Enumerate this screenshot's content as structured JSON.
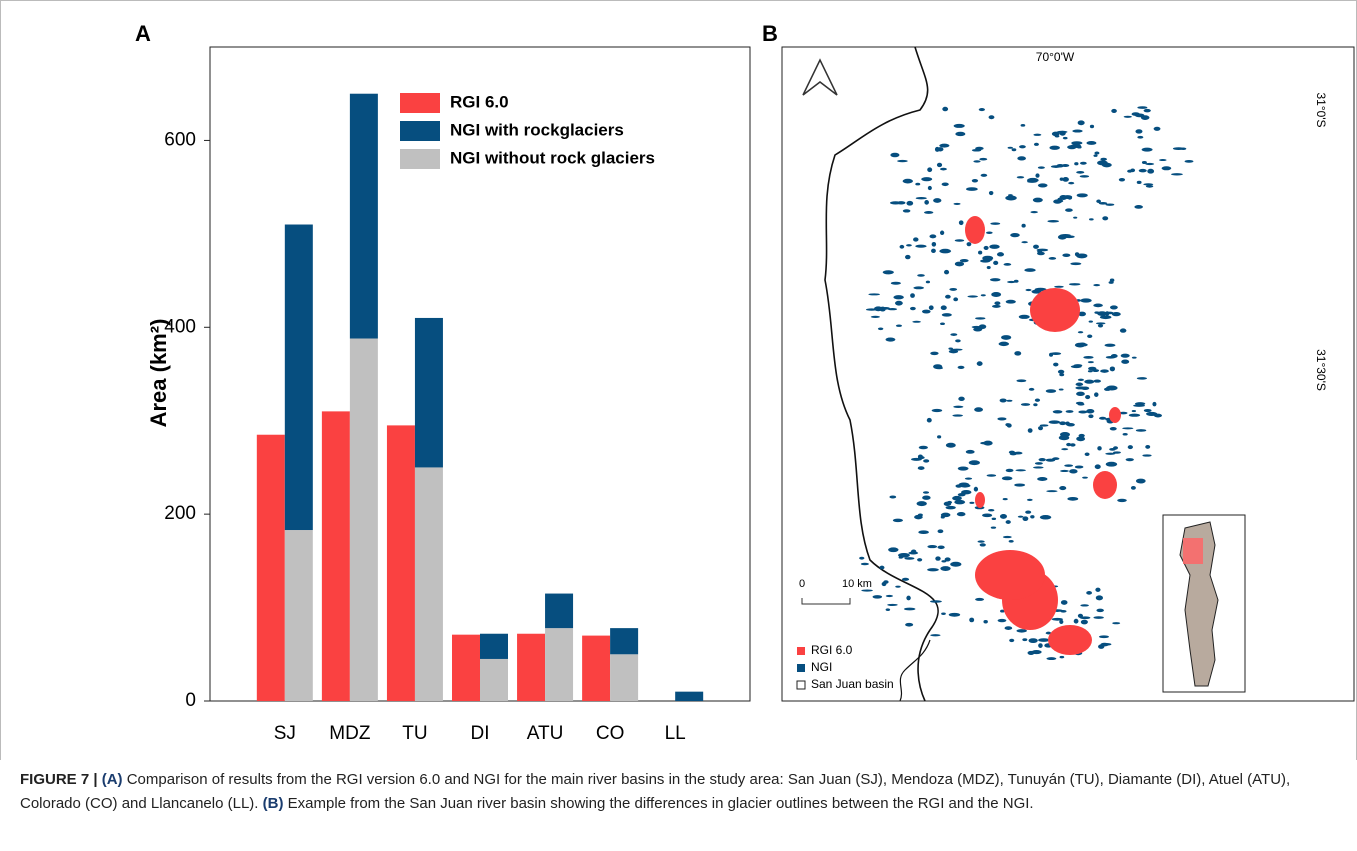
{
  "panel_labels": [
    "A",
    "B"
  ],
  "chart_data": {
    "type": "bar",
    "ylabel": "Area (km²)",
    "categories": [
      "SJ",
      "MDZ",
      "TU",
      "DI",
      "ATU",
      "CO",
      "LL"
    ],
    "series": [
      {
        "name": "RGI 6.0",
        "color": "#fa4141",
        "values": [
          285,
          310,
          295,
          71,
          72,
          70,
          0
        ]
      },
      {
        "name": "NGI with rockglaciers",
        "color": "#064e7f",
        "values": [
          327,
          262,
          160,
          27,
          37,
          28,
          10
        ]
      },
      {
        "name": "NGI without rock glaciers",
        "color": "#c0c0c0",
        "values": [
          183,
          388,
          250,
          45,
          78,
          50,
          0
        ]
      }
    ],
    "ylim": [
      0,
      700
    ],
    "yticks": [
      0,
      200,
      400,
      600
    ],
    "grid": false
  },
  "map": {
    "longitude": "70°0'W",
    "lat_top": "31°0'S",
    "lat_mid": "31°30'S",
    "scale": [
      "0",
      "10 km"
    ],
    "legend": [
      "RGI 6.0",
      "NGI",
      "San Juan basin"
    ]
  },
  "caption": {
    "label": "FIGURE 7 | ",
    "a": "(A)",
    "text_a": " Comparison of results from the RGI version 6.0 and NGI for the main river basins in the study area: San Juan (SJ), Mendoza (MDZ), Tunuyán (TU), Diamante (DI), Atuel (ATU), Colorado (CO) and Llancanelo (LL). ",
    "b": "(B)",
    "text_b": " Example from the San Juan river basin showing the differences in glacier outlines between the RGI and the NGI."
  }
}
